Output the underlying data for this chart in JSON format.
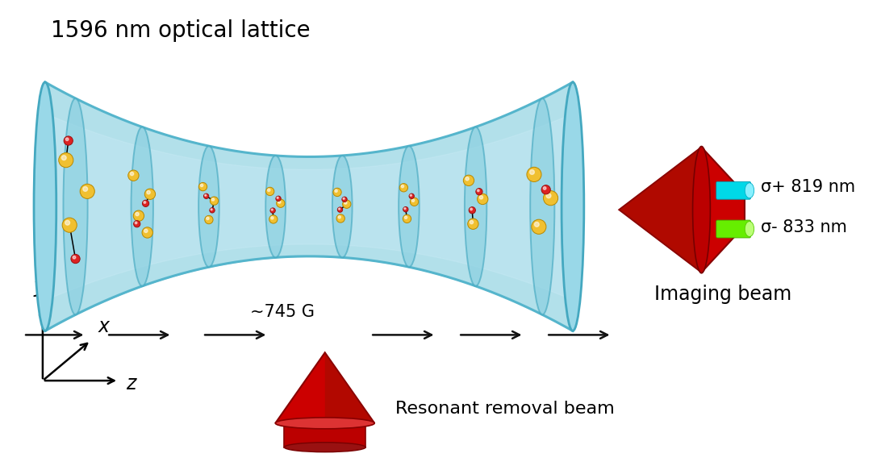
{
  "title": "1596 nm optical lattice",
  "title_fontsize": 20,
  "background_color": "#ffffff",
  "lattice_tube_color": "#aadde8",
  "lattice_tube_edge_color": "#55b5cc",
  "lattice_disk_color": "#88cfe0",
  "lattice_disk_edge_color": "#44a8c0",
  "atom_large_color": "#f0c030",
  "atom_large_edge_color": "#b88800",
  "atom_small_color": "#dd2222",
  "atom_small_edge_color": "#991010",
  "arrow_color": "#111111",
  "field_label": "~745 G",
  "field_label_fontsize": 15,
  "imaging_arrow_cyan_color": "#00d8e8",
  "imaging_arrow_green_color": "#66ee00",
  "imaging_body_color": "#cc0000",
  "imaging_label_sigma_plus": "σ+ 819 nm",
  "imaging_label_sigma_minus": "σ- 833 nm",
  "imaging_label_beam": "Imaging beam",
  "imaging_label_fontsize": 15,
  "removal_label": "Resonant removal beam",
  "removal_label_fontsize": 15,
  "axis_label_fontsize": 17,
  "figsize": [
    10.92,
    5.78
  ],
  "dpi": 100
}
